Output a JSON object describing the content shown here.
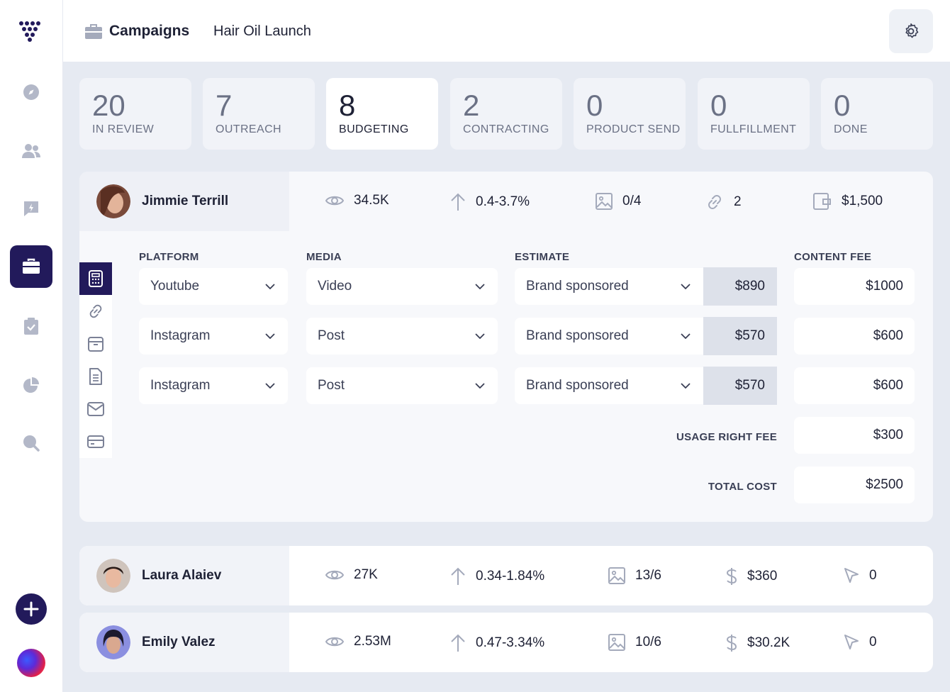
{
  "header": {
    "title": "Campaigns",
    "subtitle": "Hair Oil Launch"
  },
  "stages": [
    {
      "count": "20",
      "label": "IN REVIEW"
    },
    {
      "count": "7",
      "label": "OUTREACH"
    },
    {
      "count": "8",
      "label": "BUDGETING"
    },
    {
      "count": "2",
      "label": "CONTRACTING"
    },
    {
      "count": "0",
      "label": "PRODUCT SEND"
    },
    {
      "count": "0",
      "label": "FULLFILLMENT"
    },
    {
      "count": "0",
      "label": "DONE"
    }
  ],
  "active_stage": "BUDGETING",
  "expanded": {
    "name": "Jimmie Terrill",
    "views": "34.5K",
    "engagement": "0.4-3.7%",
    "media": "0/4",
    "links": "2",
    "budget": "$1,500",
    "columns": {
      "platform": "PLATFORM",
      "media": "MEDIA",
      "estimate": "ESTIMATE",
      "content_fee": "CONTENT FEE"
    },
    "lines": [
      {
        "platform": "Youtube",
        "media": "Video",
        "estimate": "Brand sponsored",
        "price": "$890",
        "fee": "$1000"
      },
      {
        "platform": "Instagram",
        "media": "Post",
        "estimate": "Brand sponsored",
        "price": "$570",
        "fee": "$600"
      },
      {
        "platform": "Instagram",
        "media": "Post",
        "estimate": "Brand sponsored",
        "price": "$570",
        "fee": "$600"
      }
    ],
    "usage_label": "USAGE RIGHT FEE",
    "usage_value": "$300",
    "total_label": "TOTAL COST",
    "total_value": "$2500"
  },
  "rows": [
    {
      "name": "Laura Alaiev",
      "views": "27K",
      "engagement": "0.34-1.84%",
      "media": "13/6",
      "budget": "$360",
      "clicks": "0"
    },
    {
      "name": "Emily Valez",
      "views": "2.53M",
      "engagement": "0.47-3.34%",
      "media": "10/6",
      "budget": "$30.2K",
      "clicks": "0"
    }
  ],
  "colors": {
    "accent": "#221a5b",
    "background": "#e6eaf2",
    "muted": "#a4aabb"
  },
  "icons": [
    "logo-icon",
    "compass-icon",
    "users-icon",
    "feedback-icon",
    "briefcase-icon",
    "clipboard-icon",
    "pie-chart-icon",
    "search-icon",
    "plus-icon",
    "gear-icon",
    "eye-icon",
    "arrow-up-icon",
    "image-icon",
    "link-icon",
    "wallet-icon",
    "calculator-icon",
    "archive-icon",
    "document-icon",
    "mail-icon",
    "card-icon",
    "dollar-icon",
    "cursor-icon",
    "chevron-down-icon"
  ]
}
